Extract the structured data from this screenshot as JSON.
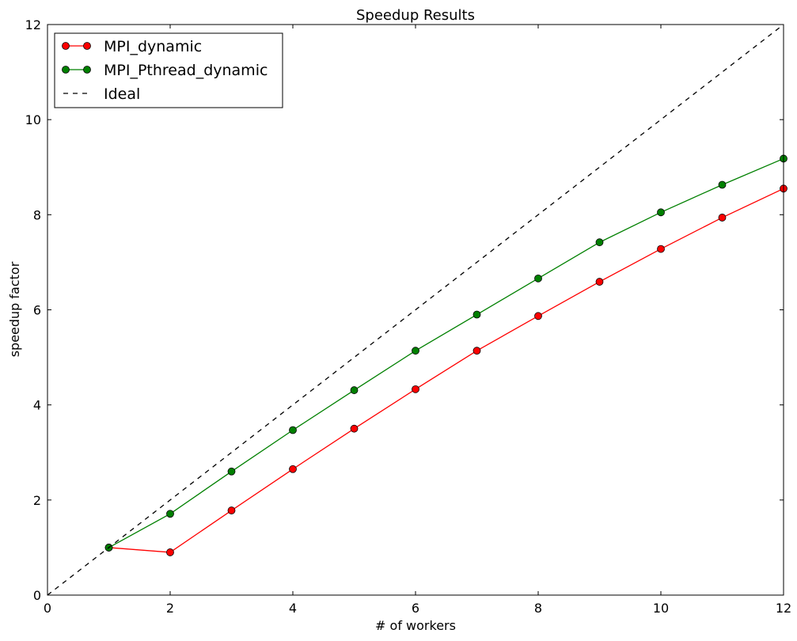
{
  "chart_data": {
    "type": "line",
    "title": "Speedup Results",
    "xlabel": "# of workers",
    "ylabel": "speedup factor",
    "xlim": [
      0,
      12
    ],
    "ylim": [
      0,
      12
    ],
    "xticks": [
      0,
      2,
      4,
      6,
      8,
      10,
      12
    ],
    "yticks": [
      0,
      2,
      4,
      6,
      8,
      10,
      12
    ],
    "grid": false,
    "legend": {
      "position": "top-left",
      "entries": [
        "MPI_dynamic",
        "MPI_Pthread_dynamic",
        "Ideal"
      ]
    },
    "series": [
      {
        "name": "MPI_dynamic",
        "color": "#ff0000",
        "marker": "circle",
        "line_style": "solid",
        "x": [
          1,
          2,
          3,
          4,
          5,
          6,
          7,
          8,
          9,
          10,
          11,
          12
        ],
        "y": [
          1.0,
          0.9,
          1.78,
          2.65,
          3.5,
          4.33,
          5.14,
          5.87,
          6.59,
          7.28,
          7.94,
          8.55
        ]
      },
      {
        "name": "MPI_Pthread_dynamic",
        "color": "#008000",
        "marker": "circle",
        "line_style": "solid",
        "x": [
          1,
          2,
          3,
          4,
          5,
          6,
          7,
          8,
          9,
          10,
          11,
          12
        ],
        "y": [
          1.0,
          1.71,
          2.6,
          3.47,
          4.31,
          5.14,
          5.9,
          6.66,
          7.42,
          8.05,
          8.63,
          9.18
        ]
      },
      {
        "name": "Ideal",
        "color": "#000000",
        "marker": "none",
        "line_style": "dashed",
        "x": [
          0,
          12
        ],
        "y": [
          0,
          12
        ]
      }
    ]
  }
}
